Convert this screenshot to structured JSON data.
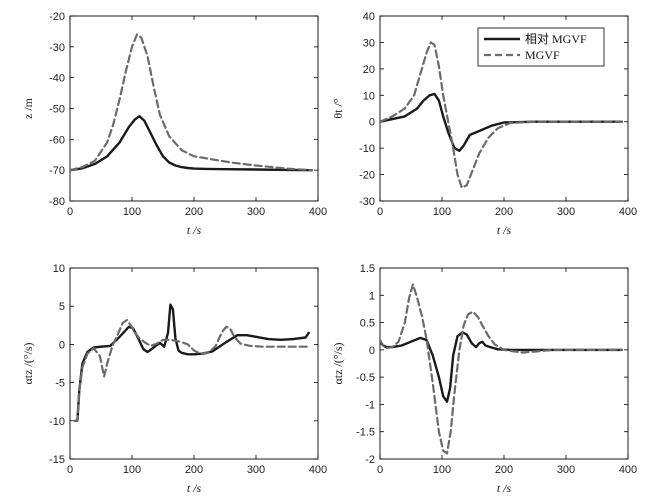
{
  "legend": {
    "items": [
      {
        "label": "相对 MGVF",
        "style": "solid"
      },
      {
        "label": "MGVF",
        "style": "dashed"
      }
    ]
  },
  "colors": {
    "solid": "#1a1a1a",
    "dashed": "#6b6b6b",
    "axis": "#000000"
  },
  "chart_data": [
    {
      "type": "line",
      "ylabel": "z /m",
      "xlabel": "t /s",
      "xlim": [
        0,
        400
      ],
      "ylim": [
        -80,
        -20
      ],
      "xticks": [
        0,
        100,
        200,
        300,
        400
      ],
      "yticks": [
        -80,
        -70,
        -60,
        -50,
        -40,
        -30,
        -20
      ],
      "grid": false,
      "series": [
        {
          "name": "相对 MGVF",
          "style": "solid",
          "x": [
            0,
            20,
            40,
            60,
            80,
            95,
            105,
            112,
            120,
            130,
            140,
            150,
            160,
            170,
            180,
            190,
            200,
            220,
            250,
            300,
            350,
            390
          ],
          "y": [
            -70,
            -69.4,
            -68,
            -65.5,
            -61,
            -56,
            -53.5,
            -52.5,
            -54,
            -58,
            -62,
            -65.5,
            -67.5,
            -68.5,
            -69,
            -69.3,
            -69.5,
            -69.6,
            -69.7,
            -69.8,
            -69.9,
            -70
          ]
        },
        {
          "name": "MGVF",
          "style": "dashed",
          "x": [
            0,
            20,
            40,
            60,
            70,
            80,
            90,
            100,
            108,
            115,
            125,
            135,
            145,
            160,
            180,
            200,
            230,
            260,
            300,
            350,
            390
          ],
          "y": [
            -70,
            -69,
            -67,
            -61,
            -55,
            -47,
            -38,
            -30,
            -26,
            -27,
            -33,
            -43,
            -52,
            -59,
            -63.5,
            -65.5,
            -66.5,
            -67.5,
            -68.5,
            -69.5,
            -70
          ]
        }
      ]
    },
    {
      "type": "line",
      "ylabel": "θt /°",
      "xlabel": "t /s",
      "xlim": [
        0,
        400
      ],
      "ylim": [
        -30,
        40
      ],
      "xticks": [
        0,
        100,
        200,
        300,
        400
      ],
      "yticks": [
        -30,
        -20,
        -10,
        0,
        10,
        20,
        30,
        40
      ],
      "grid": false,
      "legend_position": "top-right",
      "series": [
        {
          "name": "相对 MGVF",
          "style": "solid",
          "x": [
            0,
            20,
            40,
            60,
            70,
            80,
            88,
            95,
            102,
            110,
            120,
            128,
            135,
            145,
            160,
            180,
            200,
            250,
            300,
            390
          ],
          "y": [
            0,
            1,
            2,
            5,
            8,
            10,
            10.5,
            8,
            2,
            -4,
            -10,
            -11,
            -9,
            -5,
            -3.5,
            -1.5,
            -0.3,
            0,
            0,
            0
          ]
        },
        {
          "name": "MGVF",
          "style": "dashed",
          "x": [
            0,
            20,
            40,
            55,
            65,
            75,
            82,
            88,
            95,
            102,
            110,
            118,
            125,
            132,
            140,
            150,
            160,
            175,
            190,
            210,
            250,
            300,
            390
          ],
          "y": [
            0,
            2,
            5,
            10,
            18,
            26,
            30,
            29,
            21,
            10,
            0,
            -10,
            -20,
            -25,
            -24,
            -18,
            -12,
            -6,
            -2.5,
            -0.5,
            0,
            0,
            0
          ]
        }
      ]
    },
    {
      "type": "line",
      "ylabel": "αtz /(°/s)",
      "xlabel": "t /s",
      "xlim": [
        0,
        400
      ],
      "ylim": [
        -15,
        10
      ],
      "xticks": [
        0,
        100,
        200,
        300,
        400
      ],
      "yticks": [
        -15,
        -10,
        -5,
        0,
        5,
        10
      ],
      "grid": false,
      "series": [
        {
          "name": "相对 MGVF",
          "style": "solid",
          "x": [
            8,
            12,
            15,
            20,
            28,
            38,
            50,
            65,
            80,
            95,
            102,
            110,
            118,
            125,
            132,
            138,
            145,
            152,
            158,
            162,
            166,
            170,
            175,
            180,
            190,
            200,
            215,
            230,
            250,
            270,
            285,
            300,
            320,
            340,
            360,
            380,
            385
          ],
          "y": [
            -10,
            -10,
            -6,
            -2.5,
            -1,
            -0.4,
            -0.3,
            -0.2,
            1,
            2.3,
            2.1,
            0.8,
            -0.6,
            -1,
            -0.6,
            -0.2,
            0.2,
            -0.3,
            1.5,
            5.2,
            4.6,
            0.8,
            -0.8,
            -1.1,
            -1.3,
            -1.3,
            -1.2,
            -0.9,
            0.2,
            1.2,
            1.2,
            1,
            0.7,
            0.6,
            0.7,
            0.9,
            1.5
          ]
        },
        {
          "name": "MGVF",
          "style": "dashed",
          "x": [
            8,
            12,
            15,
            20,
            28,
            38,
            48,
            55,
            60,
            68,
            78,
            85,
            92,
            98,
            105,
            112,
            120,
            130,
            140,
            150,
            160,
            170,
            180,
            190,
            200,
            210,
            225,
            235,
            245,
            252,
            258,
            265,
            275,
            290,
            310,
            340,
            370,
            385
          ],
          "y": [
            -10,
            -10,
            -6,
            -3,
            -1.2,
            -0.5,
            -1.5,
            -4.2,
            -2.5,
            -0.3,
            1.5,
            2.8,
            3.2,
            2.5,
            1.5,
            0.8,
            0.3,
            -0.2,
            0.1,
            0.6,
            0.6,
            0.5,
            0.3,
            0,
            -0.8,
            -1.2,
            -1,
            -0.2,
            1.6,
            2.3,
            2.1,
            1,
            0.1,
            -0.2,
            -0.3,
            -0.3,
            -0.3,
            -0.3
          ]
        }
      ]
    },
    {
      "type": "line",
      "ylabel": "αtz /(°/s)",
      "xlabel": "t /s",
      "xlim": [
        0,
        400
      ],
      "ylim": [
        -2,
        1.5
      ],
      "xticks": [
        0,
        100,
        200,
        300,
        400
      ],
      "yticks": [
        -2,
        -1.5,
        -1,
        -0.5,
        0,
        0.5,
        1,
        1.5
      ],
      "grid": false,
      "series": [
        {
          "name": "相对 MGVF",
          "style": "solid",
          "x": [
            0,
            5,
            10,
            20,
            35,
            50,
            65,
            75,
            85,
            95,
            102,
            108,
            113,
            118,
            125,
            133,
            140,
            148,
            155,
            160,
            165,
            170,
            178,
            190,
            210,
            250,
            300,
            390
          ],
          "y": [
            0.15,
            0.08,
            0.05,
            0.05,
            0.08,
            0.15,
            0.22,
            0.18,
            -0.1,
            -0.5,
            -0.85,
            -0.95,
            -0.7,
            -0.1,
            0.25,
            0.32,
            0.28,
            0.12,
            0.05,
            0.12,
            0.15,
            0.08,
            0.05,
            0.01,
            0,
            0,
            0,
            0
          ]
        },
        {
          "name": "MGVF",
          "style": "dashed",
          "x": [
            0,
            5,
            10,
            20,
            30,
            40,
            47,
            53,
            60,
            68,
            75,
            85,
            95,
            102,
            108,
            114,
            120,
            128,
            135,
            142,
            150,
            158,
            165,
            175,
            185,
            200,
            230,
            280,
            330,
            390
          ],
          "y": [
            0.18,
            0.08,
            0.03,
            0.05,
            0.15,
            0.5,
            0.95,
            1.2,
            0.95,
            0.6,
            0.2,
            -0.6,
            -1.5,
            -1.85,
            -1.9,
            -1.5,
            -0.8,
            0,
            0.45,
            0.65,
            0.7,
            0.6,
            0.45,
            0.25,
            0.1,
            0,
            -0.05,
            0,
            0,
            0
          ]
        }
      ]
    }
  ]
}
